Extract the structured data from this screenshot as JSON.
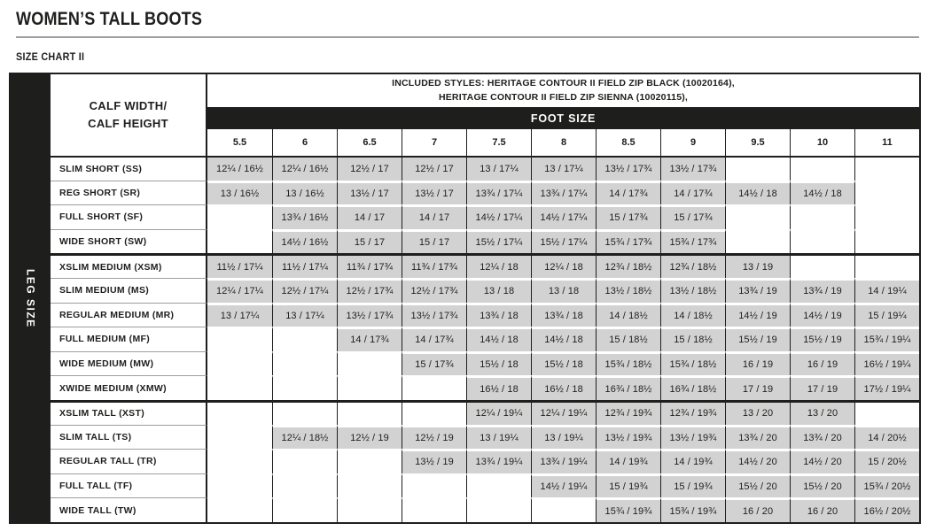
{
  "page": {
    "title": "WOMEN’S TALL BOOTS",
    "subtitle": "SIZE CHART II"
  },
  "colors": {
    "black": "#1e1e1c",
    "cell_gray": "#d2d2d2",
    "rule_gray": "#9e9e9e"
  },
  "table": {
    "corner_label": "LEG SIZE",
    "row_header_label": "CALF WIDTH/\nCALF HEIGHT",
    "included_styles_line1": "INCLUDED STYLES: HERITAGE CONTOUR II FIELD ZIP BLACK (10020164),",
    "included_styles_line2": "HERITAGE CONTOUR II FIELD ZIP SIENNA (10020115),",
    "foot_size_label": "FOOT SIZE",
    "columns": [
      "5.5",
      "6",
      "6.5",
      "7",
      "7.5",
      "8",
      "8.5",
      "9",
      "9.5",
      "10",
      "11"
    ],
    "rows": [
      {
        "label": "SLIM SHORT (SS)",
        "section": "short",
        "cells": [
          "12¼ / 16½",
          "12¼ / 16½",
          "12½ / 17",
          "12½ / 17",
          "13 / 17¼",
          "13 / 17¼",
          "13½ / 17¾",
          "13½ / 17¾",
          "",
          "",
          ""
        ]
      },
      {
        "label": "REG SHORT (SR)",
        "section": "short",
        "cells": [
          "13 / 16½",
          "13 / 16½",
          "13½ / 17",
          "13½ / 17",
          "13¾ / 17¼",
          "13¾ / 17¼",
          "14 / 17¾",
          "14 / 17¾",
          "14½ / 18",
          "14½ / 18",
          ""
        ]
      },
      {
        "label": "FULL SHORT (SF)",
        "section": "short",
        "cells": [
          "",
          "13¾ / 16½",
          "14 / 17",
          "14 / 17",
          "14½ / 17¼",
          "14½ / 17¼",
          "15 / 17¾",
          "15 / 17¾",
          "",
          "",
          ""
        ]
      },
      {
        "label": "WIDE SHORT (SW)",
        "section": "short",
        "cells": [
          "",
          "14½ / 16½",
          "15 / 17",
          "15 / 17",
          "15½ / 17¼",
          "15½ / 17¼",
          "15¾ / 17¾",
          "15¾ / 17¾",
          "",
          "",
          ""
        ]
      },
      {
        "label": "XSLIM MEDIUM (XSM)",
        "section": "medium",
        "cells": [
          "11½ / 17¼",
          "11½ / 17¼",
          "11¾ / 17¾",
          "11¾ / 17¾",
          "12¼ / 18",
          "12¼ / 18",
          "12¾ / 18½",
          "12¾ / 18½",
          "13 / 19",
          "",
          ""
        ]
      },
      {
        "label": "SLIM MEDIUM (MS)",
        "section": "medium",
        "cells": [
          "12¼ / 17¼",
          "12½ / 17¼",
          "12½ / 17¾",
          "12½ / 17¾",
          "13 / 18",
          "13 / 18",
          "13½ / 18½",
          "13½ / 18½",
          "13¾ / 19",
          "13¾ / 19",
          "14 / 19¼"
        ]
      },
      {
        "label": "REGULAR  MEDIUM  (MR)",
        "section": "medium",
        "cells": [
          "13 / 17¼",
          "13 / 17¼",
          "13½ / 17¾",
          "13½ / 17¾",
          "13¾ / 18",
          "13¾ / 18",
          "14 / 18½",
          "14 / 18½",
          "14½ / 19",
          "14½ / 19",
          "15 / 19¼"
        ]
      },
      {
        "label": "FULL MEDIUM (MF)",
        "section": "medium",
        "cells": [
          "",
          "",
          "14 / 17¾",
          "14 / 17¾",
          "14½ / 18",
          "14½ / 18",
          "15 / 18½",
          "15 / 18½",
          "15½ / 19",
          "15½ / 19",
          "15¾ / 19¼"
        ]
      },
      {
        "label": "WIDE MEDIUM (MW)",
        "section": "medium",
        "cells": [
          "",
          "",
          "",
          "15 / 17¾",
          "15½ / 18",
          "15½ / 18",
          "15¾ / 18½",
          "15¾ / 18½",
          "16 / 19",
          "16 / 19",
          "16½ / 19¼"
        ]
      },
      {
        "label": "XWIDE MEDIUM (XMW)",
        "section": "medium",
        "cells": [
          "",
          "",
          "",
          "",
          "16½ / 18",
          "16½ / 18",
          "16¾ / 18½",
          "16¾ / 18½",
          "17 / 19",
          "17 / 19",
          "17½ / 19¼"
        ]
      },
      {
        "label": "XSLIM TALL (XST)",
        "section": "tall",
        "cells": [
          "",
          "",
          "",
          "",
          "12¼ / 19¼",
          "12¼ / 19¼",
          "12¾ / 19¾",
          "12¾ / 19¾",
          "13 / 20",
          "13 / 20",
          ""
        ]
      },
      {
        "label": "SLIM TALL (TS)",
        "section": "tall",
        "cells": [
          "",
          "12¼ / 18½",
          "12½ / 19",
          "12½ / 19",
          "13 / 19¼",
          "13 / 19¼",
          "13½ / 19¾",
          "13½ / 19¾",
          "13¾ / 20",
          "13¾ / 20",
          "14 / 20½"
        ]
      },
      {
        "label": "REGULAR TALL (TR)",
        "section": "tall",
        "cells": [
          "",
          "",
          "",
          "13½ / 19",
          "13¾ / 19¼",
          "13¾ / 19¼",
          "14 / 19¾",
          "14 / 19¾",
          "14½ / 20",
          "14½ / 20",
          "15 / 20½"
        ]
      },
      {
        "label": "FULL TALL (TF)",
        "section": "tall",
        "cells": [
          "",
          "",
          "",
          "",
          "",
          "14½ / 19¼",
          "15 / 19¾",
          "15 / 19¾",
          "15½ / 20",
          "15½ / 20",
          "15¾ / 20½"
        ]
      },
      {
        "label": "WIDE TALL (TW)",
        "section": "tall",
        "cells": [
          "",
          "",
          "",
          "",
          "",
          "",
          "15¾ / 19¾",
          "15¾ / 19¾",
          "16 / 20",
          "16 / 20",
          "16½ / 20½"
        ]
      }
    ]
  }
}
